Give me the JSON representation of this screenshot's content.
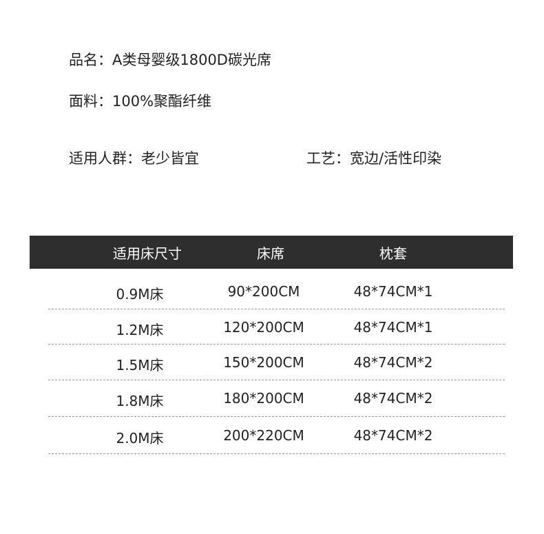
{
  "info": {
    "name_label": "品名：",
    "name_value": "A类母婴级1800D碳光席",
    "fabric_label": "面料：",
    "fabric_value": "100%聚酯纤维",
    "audience_label": "适用人群：",
    "audience_value": "老少皆宜",
    "craft_label": "工艺：",
    "craft_value": "宽边/活性印染"
  },
  "table": {
    "headers": [
      "适用床尺寸",
      "床席",
      "枕套"
    ],
    "rows": [
      [
        "0.9M床",
        "90*200CM",
        "48*74CM*1"
      ],
      [
        "1.2M床",
        "120*200CM",
        "48*74CM*1"
      ],
      [
        "1.5M床",
        "150*200CM",
        "48*74CM*2"
      ],
      [
        "1.8M床",
        "180*200CM",
        "48*74CM*2"
      ],
      [
        "2.0M床",
        "200*220CM",
        "48*74CM*2"
      ]
    ]
  },
  "colors": {
    "header_bg": "#2e2e2e",
    "header_text": "#ffffff",
    "divider": "#9a9a9a"
  }
}
